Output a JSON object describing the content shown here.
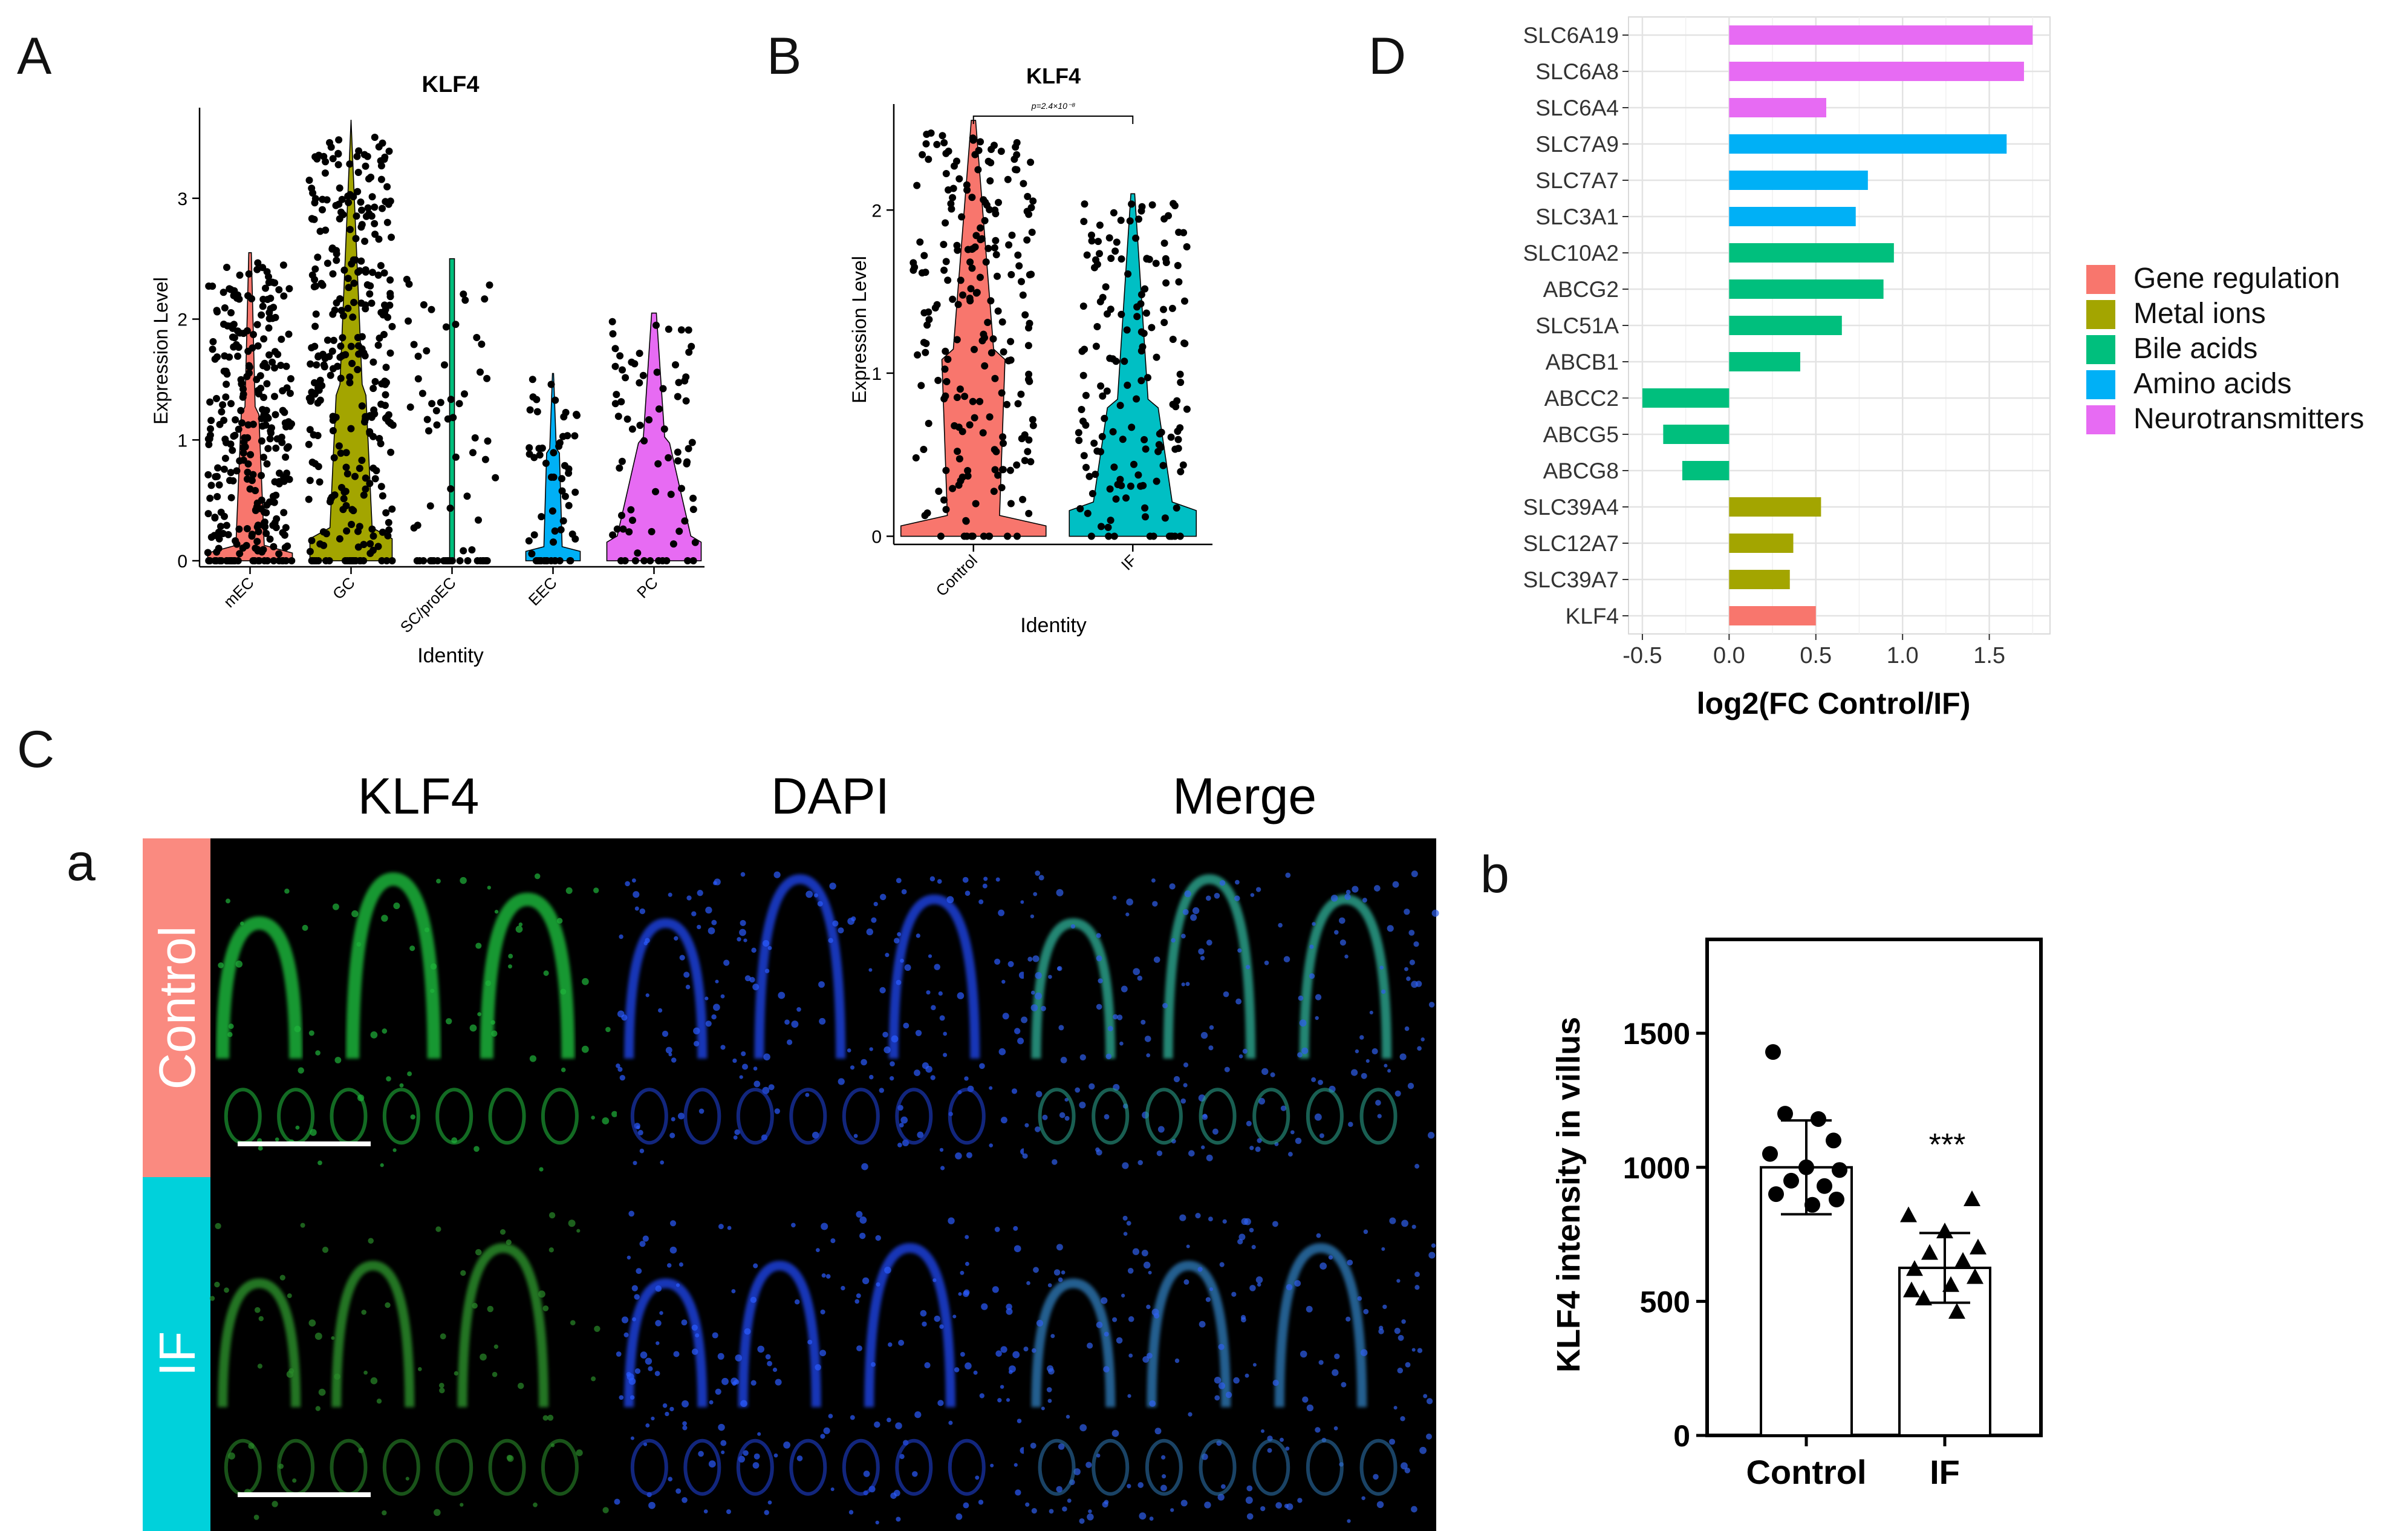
{
  "colors": {
    "red": "#F8766D",
    "olive": "#A3A500",
    "green": "#00BF7D",
    "blue": "#00B0F6",
    "magenta": "#E76BF3",
    "teal": "#00BFC4",
    "panel_red": "#FA8A80",
    "panel_teal": "#00D1DB"
  },
  "panel_labels": {
    "a": "A",
    "b": "B",
    "c": "C",
    "d": "D",
    "ca": "a",
    "cb": "b"
  },
  "micrograph": {
    "col_titles": [
      "KLF4",
      "DAPI",
      "Merge"
    ],
    "row_labels": [
      "Control",
      "IF"
    ]
  },
  "chart_data": [
    {
      "panel": "A",
      "type": "violin",
      "title": "KLF4",
      "xlabel": "Identity",
      "ylabel": "Expression Level",
      "categories": [
        "mEC",
        "GC",
        "SC/proEC",
        "EEC",
        "PC"
      ],
      "colors": [
        "#F8766D",
        "#A3A500",
        "#00BF7D",
        "#00B0F6",
        "#E76BF3"
      ],
      "max": [
        2.55,
        3.65,
        2.5,
        1.55,
        2.05
      ],
      "ylim": [
        -0.05,
        3.75
      ],
      "yticks": [
        0,
        1,
        2,
        3
      ]
    },
    {
      "panel": "B",
      "type": "violin",
      "title": "KLF4",
      "xlabel": "Identity",
      "ylabel": "Expression Level",
      "categories": [
        "Control",
        "IF"
      ],
      "colors": [
        "#F8766D",
        "#00BFC4"
      ],
      "max": [
        2.55,
        2.1
      ],
      "ylim": [
        -0.05,
        2.65
      ],
      "yticks": [
        0,
        1,
        2
      ],
      "annotation": "p=2.4×10⁻⁸"
    },
    {
      "panel": "D",
      "type": "bar",
      "orientation": "horizontal",
      "xlabel": "log2(FC Control/IF)",
      "xlim": [
        -0.58,
        1.85
      ],
      "xticks": [
        -0.5,
        0.0,
        0.5,
        1.0,
        1.5
      ],
      "xtick_labels": [
        "-0.5",
        "0.0",
        "0.5",
        "1.0",
        "1.5"
      ],
      "genes": [
        "SLC6A19",
        "SLC6A8",
        "SLC6A4",
        "SLC7A9",
        "SLC7A7",
        "SLC3A1",
        "SLC10A2",
        "ABCG2",
        "SLC51A",
        "ABCB1",
        "ABCC2",
        "ABCG5",
        "ABCG8",
        "SLC39A4",
        "SLC12A7",
        "SLC39A7",
        "KLF4"
      ],
      "values": [
        1.75,
        1.7,
        0.56,
        1.6,
        0.8,
        0.73,
        0.95,
        0.89,
        0.65,
        0.41,
        -0.5,
        -0.38,
        -0.27,
        0.53,
        0.37,
        0.35,
        0.5
      ],
      "groups": [
        "Neurotransmitters",
        "Neurotransmitters",
        "Neurotransmitters",
        "Amino acids",
        "Amino acids",
        "Amino acids",
        "Bile acids",
        "Bile acids",
        "Bile acids",
        "Bile acids",
        "Bile acids",
        "Bile acids",
        "Bile acids",
        "Metal ions",
        "Metal ions",
        "Metal ions",
        "Gene regulation"
      ],
      "legend": [
        {
          "label": "Gene regulation",
          "color": "#F8766D"
        },
        {
          "label": "Metal ions",
          "color": "#A3A500"
        },
        {
          "label": "Bile acids",
          "color": "#00BF7D"
        },
        {
          "label": "Amino acids",
          "color": "#00B0F6"
        },
        {
          "label": "Neurotransmitters",
          "color": "#E76BF3"
        }
      ]
    },
    {
      "panel": "C-b",
      "type": "bar",
      "ylabel": "KLF4 intensity in villus",
      "categories": [
        "Control",
        "IF"
      ],
      "values": [
        1000,
        625
      ],
      "errors": [
        175,
        130
      ],
      "ylim": [
        0,
        1850
      ],
      "yticks": [
        0,
        500,
        1000,
        1500
      ],
      "annotation": "***",
      "points_control": [
        1430,
        1200,
        1180,
        1100,
        1050,
        1000,
        990,
        950,
        930,
        900,
        880,
        860
      ],
      "points_if": [
        880,
        820,
        760,
        700,
        680,
        650,
        620,
        590,
        560,
        540,
        510,
        460
      ]
    }
  ]
}
